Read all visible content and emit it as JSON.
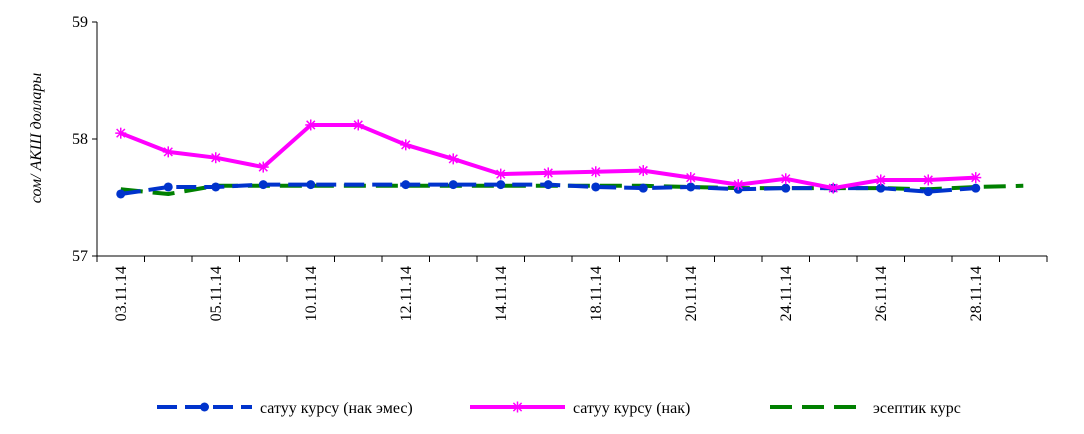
{
  "chart_data": {
    "type": "line",
    "title": "",
    "xlabel": "",
    "ylabel": "сом/ АКШ доллары",
    "ylim": [
      57,
      59
    ],
    "yticks": [
      "57",
      "58",
      "59"
    ],
    "grid": false,
    "legend_placement": "bottom",
    "x": [
      "03.11.14",
      "",
      "05.11.14",
      "",
      "10.11.14",
      "",
      "12.11.14",
      "",
      "14.11.14",
      "",
      "18.11.14",
      "",
      "20.11.14",
      "",
      "24.11.14",
      "",
      "26.11.14",
      "",
      "28.11.14",
      ""
    ],
    "series": [
      {
        "name": "сатуу курсу (нак эмес)",
        "color": "#0033cc",
        "style": "dashed-dots",
        "values": [
          57.53,
          57.59,
          57.59,
          57.61,
          57.61,
          null,
          57.61,
          57.61,
          57.61,
          57.61,
          57.59,
          57.58,
          57.59,
          57.57,
          57.58,
          57.58,
          57.58,
          57.55,
          57.58,
          null
        ]
      },
      {
        "name": "сатуу курсу  (нак)",
        "color": "#ff00ff",
        "style": "solid-stars",
        "values": [
          58.05,
          57.89,
          57.84,
          57.76,
          58.12,
          58.12,
          57.95,
          57.83,
          57.7,
          57.71,
          57.72,
          57.73,
          57.67,
          57.61,
          57.66,
          57.58,
          57.65,
          57.65,
          57.67,
          null
        ]
      },
      {
        "name": "эсептик курс",
        "color": "#008000",
        "style": "dashed",
        "values": [
          57.57,
          57.53,
          57.6,
          57.6,
          57.6,
          57.6,
          57.6,
          57.6,
          57.6,
          57.6,
          57.6,
          57.6,
          57.59,
          57.58,
          57.58,
          57.58,
          57.58,
          57.57,
          57.59,
          57.6
        ]
      }
    ]
  }
}
